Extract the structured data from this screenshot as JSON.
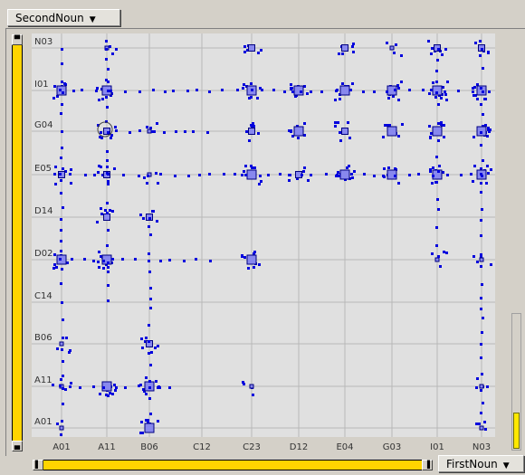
{
  "controls": {
    "y_dimension": "SecondNoun",
    "x_dimension": "FirstNoun",
    "dropdown_arrow": "▼"
  },
  "colors": {
    "point_fill": "#0000dd",
    "box_fill": "#8888ee",
    "box_stroke": "#000080",
    "slider": "#ffd400",
    "plot_bg": "#e0e0e0",
    "grid": "#b8b8b8"
  },
  "chart_data": {
    "type": "scatter",
    "title": "",
    "xlabel": "",
    "ylabel": "",
    "x_categories": [
      "A01",
      "A11",
      "B06",
      "C12",
      "C23",
      "D12",
      "E04",
      "G03",
      "I01",
      "N03"
    ],
    "y_categories": [
      "A01",
      "A11",
      "B06",
      "C14",
      "D02",
      "D14",
      "E05",
      "G04",
      "I01",
      "N03"
    ],
    "grid": true,
    "points": [
      {
        "x": "A01",
        "y": "I01",
        "size": "large"
      },
      {
        "x": "A01",
        "y": "E05",
        "size": "medium"
      },
      {
        "x": "A01",
        "y": "D02",
        "size": "large"
      },
      {
        "x": "A01",
        "y": "A11",
        "size": "small"
      },
      {
        "x": "A01",
        "y": "A01",
        "size": "small"
      },
      {
        "x": "A01",
        "y": "B06",
        "size": "small"
      },
      {
        "x": "A11",
        "y": "I01",
        "size": "large"
      },
      {
        "x": "A11",
        "y": "G04",
        "size": "medium"
      },
      {
        "x": "A11",
        "y": "E05",
        "size": "medium"
      },
      {
        "x": "A11",
        "y": "D14",
        "size": "medium"
      },
      {
        "x": "A11",
        "y": "D02",
        "size": "large"
      },
      {
        "x": "A11",
        "y": "A11",
        "size": "large"
      },
      {
        "x": "A11",
        "y": "N03",
        "size": "small"
      },
      {
        "x": "B06",
        "y": "D14",
        "size": "medium"
      },
      {
        "x": "B06",
        "y": "A11",
        "size": "large"
      },
      {
        "x": "B06",
        "y": "A01",
        "size": "large"
      },
      {
        "x": "B06",
        "y": "G04",
        "size": "small"
      },
      {
        "x": "B06",
        "y": "E05",
        "size": "small"
      },
      {
        "x": "B06",
        "y": "B06",
        "size": "medium"
      },
      {
        "x": "C23",
        "y": "N03",
        "size": "medium"
      },
      {
        "x": "C23",
        "y": "I01",
        "size": "large"
      },
      {
        "x": "C23",
        "y": "G04",
        "size": "medium"
      },
      {
        "x": "C23",
        "y": "E05",
        "size": "large"
      },
      {
        "x": "C23",
        "y": "D02",
        "size": "large"
      },
      {
        "x": "C23",
        "y": "A11",
        "size": "small"
      },
      {
        "x": "D12",
        "y": "I01",
        "size": "large"
      },
      {
        "x": "D12",
        "y": "G04",
        "size": "large"
      },
      {
        "x": "D12",
        "y": "E05",
        "size": "medium"
      },
      {
        "x": "E04",
        "y": "N03",
        "size": "medium"
      },
      {
        "x": "E04",
        "y": "I01",
        "size": "large"
      },
      {
        "x": "E04",
        "y": "G04",
        "size": "medium"
      },
      {
        "x": "E04",
        "y": "E05",
        "size": "large"
      },
      {
        "x": "G03",
        "y": "N03",
        "size": "small"
      },
      {
        "x": "G03",
        "y": "I01",
        "size": "large"
      },
      {
        "x": "G03",
        "y": "G04",
        "size": "large"
      },
      {
        "x": "G03",
        "y": "E05",
        "size": "large"
      },
      {
        "x": "I01",
        "y": "N03",
        "size": "medium"
      },
      {
        "x": "I01",
        "y": "I01",
        "size": "large"
      },
      {
        "x": "I01",
        "y": "G04",
        "size": "large"
      },
      {
        "x": "I01",
        "y": "E05",
        "size": "large"
      },
      {
        "x": "I01",
        "y": "D02",
        "size": "small"
      },
      {
        "x": "N03",
        "y": "N03",
        "size": "medium"
      },
      {
        "x": "N03",
        "y": "I01",
        "size": "large"
      },
      {
        "x": "N03",
        "y": "G04",
        "size": "large"
      },
      {
        "x": "N03",
        "y": "E05",
        "size": "large"
      },
      {
        "x": "N03",
        "y": "D02",
        "size": "small"
      },
      {
        "x": "N03",
        "y": "A11",
        "size": "small"
      },
      {
        "x": "N03",
        "y": "A01",
        "size": "small"
      }
    ]
  }
}
